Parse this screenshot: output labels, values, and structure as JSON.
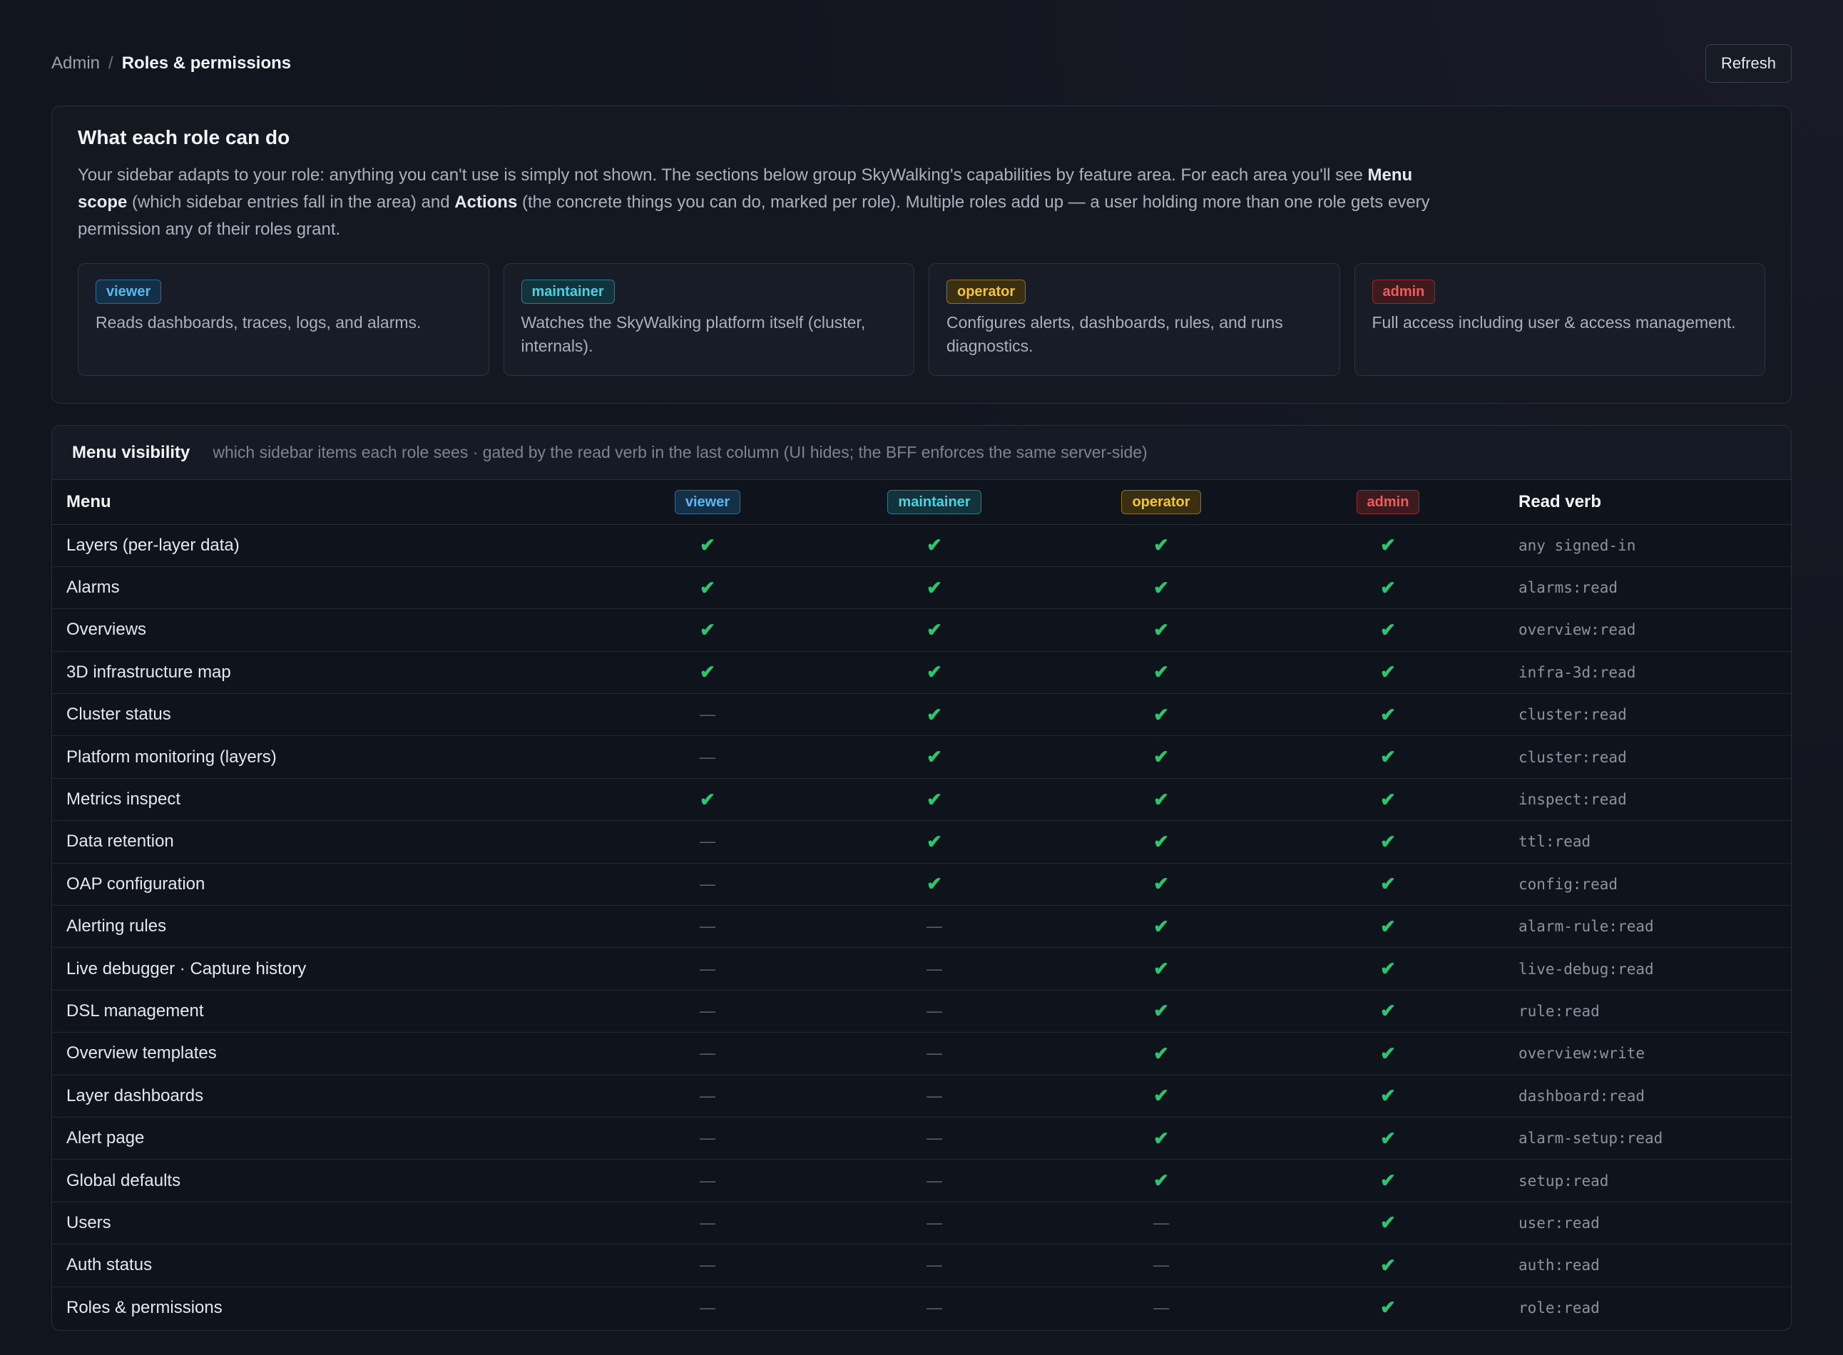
{
  "breadcrumb": {
    "parent": "Admin",
    "separator": "/",
    "current": "Roles & permissions"
  },
  "refresh_label": "Refresh",
  "roles_card": {
    "title": "What each role can do",
    "desc_part1": "Your sidebar adapts to your role: anything you can't use is simply not shown. The sections below group SkyWalking's capabilities by feature area. For each area you'll see ",
    "desc_menu_scope": "Menu scope",
    "desc_part2": " (which sidebar entries fall in the area) and ",
    "desc_actions": "Actions",
    "desc_part3": " (the concrete things you can do, marked per role). Multiple roles add up — a user holding more than one role gets every permission any of their roles grant.",
    "roles": [
      {
        "name": "viewer",
        "description": "Reads dashboards, traces, logs, and alarms."
      },
      {
        "name": "maintainer",
        "description": "Watches the SkyWalking platform itself (cluster, internals)."
      },
      {
        "name": "operator",
        "description": "Configures alerts, dashboards, rules, and runs diagnostics."
      },
      {
        "name": "admin",
        "description": "Full access including user & access management."
      }
    ]
  },
  "menu_visibility": {
    "title": "Menu visibility",
    "subtitle": "which sidebar items each role sees · gated by the read verb in the last column (UI hides; the BFF enforces the same server-side)",
    "columns": {
      "menu": "Menu",
      "viewer": "viewer",
      "maintainer": "maintainer",
      "operator": "operator",
      "admin": "admin",
      "verb": "Read verb"
    },
    "rows": [
      {
        "menu": "Layers (per-layer data)",
        "viewer": "✔",
        "maintainer": "✔",
        "operator": "✔",
        "admin": "✔",
        "verb": "any signed-in"
      },
      {
        "menu": "Alarms",
        "viewer": "✔",
        "maintainer": "✔",
        "operator": "✔",
        "admin": "✔",
        "verb": "alarms:read"
      },
      {
        "menu": "Overviews",
        "viewer": "✔",
        "maintainer": "✔",
        "operator": "✔",
        "admin": "✔",
        "verb": "overview:read"
      },
      {
        "menu": "3D infrastructure map",
        "viewer": "✔",
        "maintainer": "✔",
        "operator": "✔",
        "admin": "✔",
        "verb": "infra-3d:read"
      },
      {
        "menu": "Cluster status",
        "viewer": "—",
        "maintainer": "✔",
        "operator": "✔",
        "admin": "✔",
        "verb": "cluster:read"
      },
      {
        "menu": "Platform monitoring (layers)",
        "viewer": "—",
        "maintainer": "✔",
        "operator": "✔",
        "admin": "✔",
        "verb": "cluster:read"
      },
      {
        "menu": "Metrics inspect",
        "viewer": "✔",
        "maintainer": "✔",
        "operator": "✔",
        "admin": "✔",
        "verb": "inspect:read"
      },
      {
        "menu": "Data retention",
        "viewer": "—",
        "maintainer": "✔",
        "operator": "✔",
        "admin": "✔",
        "verb": "ttl:read"
      },
      {
        "menu": "OAP configuration",
        "viewer": "—",
        "maintainer": "✔",
        "operator": "✔",
        "admin": "✔",
        "verb": "config:read"
      },
      {
        "menu": "Alerting rules",
        "viewer": "—",
        "maintainer": "—",
        "operator": "✔",
        "admin": "✔",
        "verb": "alarm-rule:read"
      },
      {
        "menu": "Live debugger · Capture history",
        "viewer": "—",
        "maintainer": "—",
        "operator": "✔",
        "admin": "✔",
        "verb": "live-debug:read"
      },
      {
        "menu": "DSL management",
        "viewer": "—",
        "maintainer": "—",
        "operator": "✔",
        "admin": "✔",
        "verb": "rule:read"
      },
      {
        "menu": "Overview templates",
        "viewer": "—",
        "maintainer": "—",
        "operator": "✔",
        "admin": "✔",
        "verb": "overview:write"
      },
      {
        "menu": "Layer dashboards",
        "viewer": "—",
        "maintainer": "—",
        "operator": "✔",
        "admin": "✔",
        "verb": "dashboard:read"
      },
      {
        "menu": "Alert page",
        "viewer": "—",
        "maintainer": "—",
        "operator": "✔",
        "admin": "✔",
        "verb": "alarm-setup:read"
      },
      {
        "menu": "Global defaults",
        "viewer": "—",
        "maintainer": "—",
        "operator": "✔",
        "admin": "✔",
        "verb": "setup:read"
      },
      {
        "menu": "Users",
        "viewer": "—",
        "maintainer": "—",
        "operator": "—",
        "admin": "✔",
        "verb": "user:read"
      },
      {
        "menu": "Auth status",
        "viewer": "—",
        "maintainer": "—",
        "operator": "—",
        "admin": "✔",
        "verb": "auth:read"
      },
      {
        "menu": "Roles & permissions",
        "viewer": "—",
        "maintainer": "—",
        "operator": "—",
        "admin": "✔",
        "verb": "role:read"
      }
    ]
  },
  "colors": {
    "check": "#2ec46d",
    "viewer": "#5ab8f0",
    "maintainer": "#4fd0e2",
    "operator": "#f3c33c",
    "admin": "#f35a5a"
  },
  "icons": {
    "allowed": "check-icon",
    "denied": "dash-icon"
  }
}
